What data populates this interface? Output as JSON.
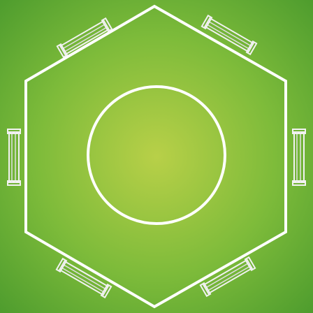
{
  "colors": {
    "grass_center": "#b8d048",
    "grass_mid": "#7dbb3a",
    "grass_edge": "#4f9d2e",
    "line": "#ffffff",
    "goal_frame": "#f2f2f2",
    "goal_net": "#e0e0e0"
  },
  "field": {
    "shape": "hexagon",
    "center_circle": true,
    "goal_count": 6
  }
}
